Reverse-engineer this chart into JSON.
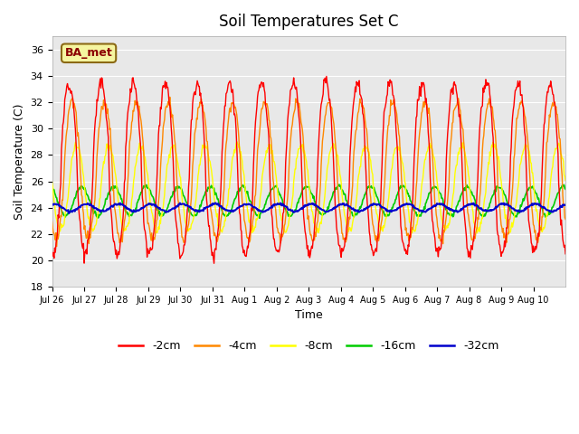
{
  "title": "Soil Temperatures Set C",
  "xlabel": "Time",
  "ylabel": "Soil Temperature (C)",
  "ylim": [
    18,
    37
  ],
  "yticks": [
    18,
    20,
    22,
    24,
    26,
    28,
    30,
    32,
    34,
    36
  ],
  "background_color": "#e8e8e8",
  "annotation_text": "BA_met",
  "colors": {
    "-2cm": "#ff0000",
    "-4cm": "#ff8800",
    "-8cm": "#ffff00",
    "-16cm": "#00cc00",
    "-32cm": "#0000cc"
  },
  "x_tick_labels": [
    "Jul 26",
    "Jul 27",
    "Jul 28",
    "Jul 29",
    "Jul 30",
    "Jul 31",
    "Aug 1",
    "Aug 2",
    "Aug 3",
    "Aug 4",
    "Aug 5",
    "Aug 6",
    "Aug 7",
    "Aug 8",
    "Aug 9",
    "Aug 10"
  ],
  "n_days": 16,
  "points_per_day": 48
}
